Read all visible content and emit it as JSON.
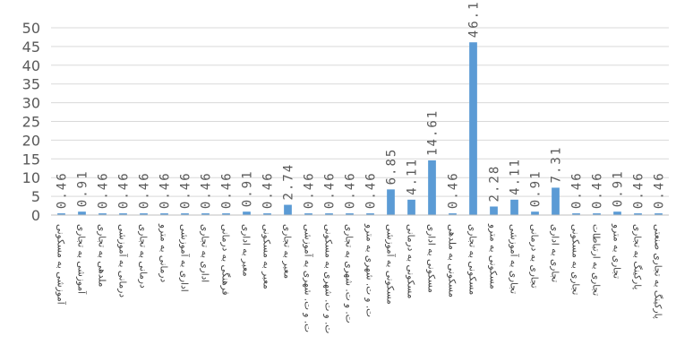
{
  "chart_data": {
    "type": "bar",
    "title": "",
    "xlabel": "",
    "ylabel": "",
    "ylim": [
      0,
      50
    ],
    "yticks": [
      0,
      5,
      10,
      15,
      20,
      25,
      30,
      35,
      40,
      45,
      50
    ],
    "grid": true,
    "legend": "none",
    "bar_color": "#5b9bd5",
    "gridline_color": "#d9d9d9",
    "categories": [
      "آموزشی به مسکونی",
      "آموزشی به تجاری",
      "ملدهی به تجاری",
      "درمانی به آموزشی",
      "درمانی به تجاری",
      "درمانی به مترو",
      "اداری به آموزشی",
      "اداری به تجاری",
      "فرهنگی به درمانی",
      "معبر به اداری",
      "معبر به مسکونی",
      "معبر به تجاری",
      "ت. و ت. شهری به آموزشی",
      "ت. و ت. شهری به مسکونی",
      "ت. و ت. شهری به تجاری",
      "ت. و ت. شهری به مترو",
      "مسکونی به آموزشی",
      "مسکونی به درمانی",
      "مسکونی به اداری",
      "مسکونی به ملدهی",
      "مسکونی به تجاری",
      "مسکونی به مترو",
      "تجاری به آموزشی",
      "تجاری به درمانی",
      "تجاری به اداری",
      "تجاری به مسکونی",
      "تجاری به ارتباطات",
      "تجاری به مترو",
      "پارکینگ به تجاری",
      "پارکینگ به تجاری صنعتی"
    ],
    "values": [
      0.46,
      0.91,
      0.46,
      0.46,
      0.46,
      0.46,
      0.46,
      0.46,
      0.46,
      0.91,
      0.46,
      2.74,
      0.46,
      0.46,
      0.46,
      0.46,
      6.85,
      4.11,
      14.61,
      0.46,
      46.12,
      2.28,
      4.11,
      0.91,
      7.31,
      0.46,
      0.46,
      0.91,
      0.46,
      0.46
    ],
    "data_labels": [
      "0.46",
      "0.91",
      "0.46",
      "0.46",
      "0.46",
      "0.46",
      "0.46",
      "0.46",
      "0.46",
      "0.91",
      "0.46",
      "2.74",
      "0.46",
      "0.46",
      "0.46",
      "0.46",
      "6.85",
      "4.11",
      "14.61",
      "0.46",
      "46.12",
      "2.28",
      "4.11",
      "0.91",
      "7.31",
      "0.46",
      "0.46",
      "0.91",
      "0.46",
      "0.46"
    ]
  }
}
